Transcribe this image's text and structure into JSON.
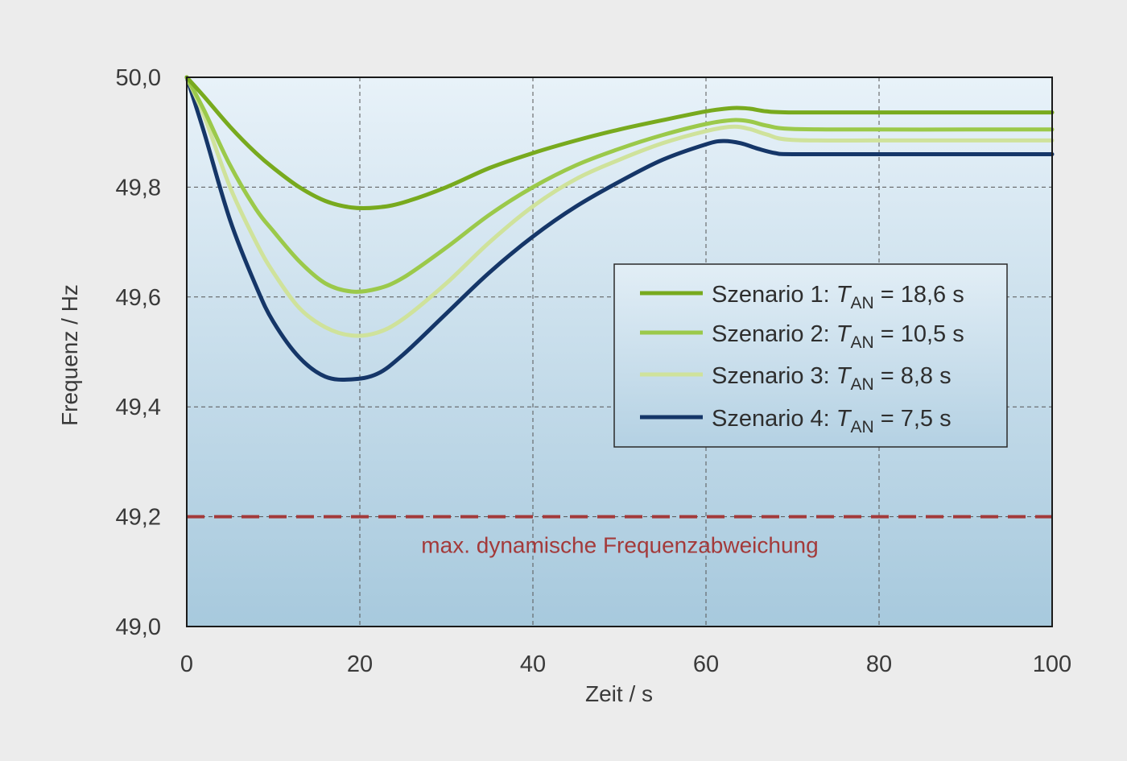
{
  "chart_data": {
    "type": "line",
    "xlabel": "Zeit / s",
    "ylabel": "Frequenz / Hz",
    "xlim": [
      0,
      100
    ],
    "ylim": [
      49.0,
      50.0
    ],
    "x_ticks": [
      "0",
      "20",
      "40",
      "60",
      "80",
      "100"
    ],
    "y_ticks": [
      "49,0",
      "49,2",
      "49,4",
      "49,6",
      "49,8",
      "50,0"
    ],
    "grid": true,
    "legend_position": "center-right",
    "series": [
      {
        "name": "Szenario 1: T_AN = 18,6 s",
        "legend": {
          "prefix": "Szenario 1:",
          "symbol": "T",
          "sub": "AN",
          "value": "= 18,6 s"
        },
        "color": "#78aa1e",
        "x": [
          0,
          2,
          5,
          8,
          10,
          13,
          16,
          19,
          22,
          25,
          30,
          35,
          40,
          45,
          50,
          55,
          60,
          63,
          65,
          67,
          70,
          80,
          90,
          100
        ],
        "y": [
          50.0,
          49.965,
          49.91,
          49.862,
          49.835,
          49.8,
          49.775,
          49.763,
          49.763,
          49.772,
          49.8,
          49.835,
          49.862,
          49.885,
          49.905,
          49.922,
          49.938,
          49.944,
          49.943,
          49.938,
          49.936,
          49.936,
          49.936,
          49.936
        ]
      },
      {
        "name": "Szenario 2: T_AN = 10,5 s",
        "legend": {
          "prefix": "Szenario 2:",
          "symbol": "T",
          "sub": "AN",
          "value": "= 10,5 s"
        },
        "color": "#9bc94a",
        "x": [
          0,
          2,
          5,
          8,
          10,
          13,
          16,
          19,
          22,
          25,
          30,
          35,
          40,
          45,
          50,
          55,
          60,
          63,
          65,
          67,
          70,
          80,
          90,
          100
        ],
        "y": [
          50.0,
          49.94,
          49.84,
          49.76,
          49.72,
          49.665,
          49.625,
          49.61,
          49.615,
          49.635,
          49.69,
          49.75,
          49.8,
          49.84,
          49.87,
          49.895,
          49.915,
          49.922,
          49.92,
          49.912,
          49.906,
          49.905,
          49.905,
          49.905
        ]
      },
      {
        "name": "Szenario 3: T_AN = 8,8 s",
        "legend": {
          "prefix": "Szenario 3:",
          "symbol": "T",
          "sub": "AN",
          "value": "= 8,8 s"
        },
        "color": "#cfe29b",
        "x": [
          0,
          2,
          5,
          8,
          10,
          13,
          16,
          19,
          22,
          25,
          30,
          35,
          40,
          45,
          50,
          55,
          60,
          63,
          65,
          67,
          70,
          80,
          90,
          100
        ],
        "y": [
          50.0,
          49.93,
          49.8,
          49.7,
          49.645,
          49.58,
          49.545,
          49.53,
          49.535,
          49.56,
          49.625,
          49.7,
          49.765,
          49.815,
          49.85,
          49.88,
          49.902,
          49.91,
          49.906,
          49.896,
          49.886,
          49.885,
          49.885,
          49.885
        ]
      },
      {
        "name": "Szenario 4: T_AN = 7,5 s",
        "legend": {
          "prefix": "Szenario 4:",
          "symbol": "T",
          "sub": "AN",
          "value": "= 7,5 s"
        },
        "color": "#153668",
        "x": [
          0,
          2,
          5,
          8,
          10,
          13,
          16,
          19,
          22,
          25,
          30,
          35,
          40,
          45,
          50,
          55,
          60,
          62,
          64,
          66,
          68,
          70,
          80,
          90,
          100
        ],
        "y": [
          50.0,
          49.9,
          49.74,
          49.62,
          49.555,
          49.49,
          49.455,
          49.45,
          49.46,
          49.495,
          49.57,
          49.645,
          49.71,
          49.765,
          49.81,
          49.85,
          49.878,
          49.884,
          49.88,
          49.87,
          49.862,
          49.86,
          49.86,
          49.86,
          49.86
        ]
      }
    ],
    "reference_line": {
      "y": 49.2,
      "label": "max. dynamische Frequenzabweichung",
      "color": "#a33a3a"
    }
  }
}
